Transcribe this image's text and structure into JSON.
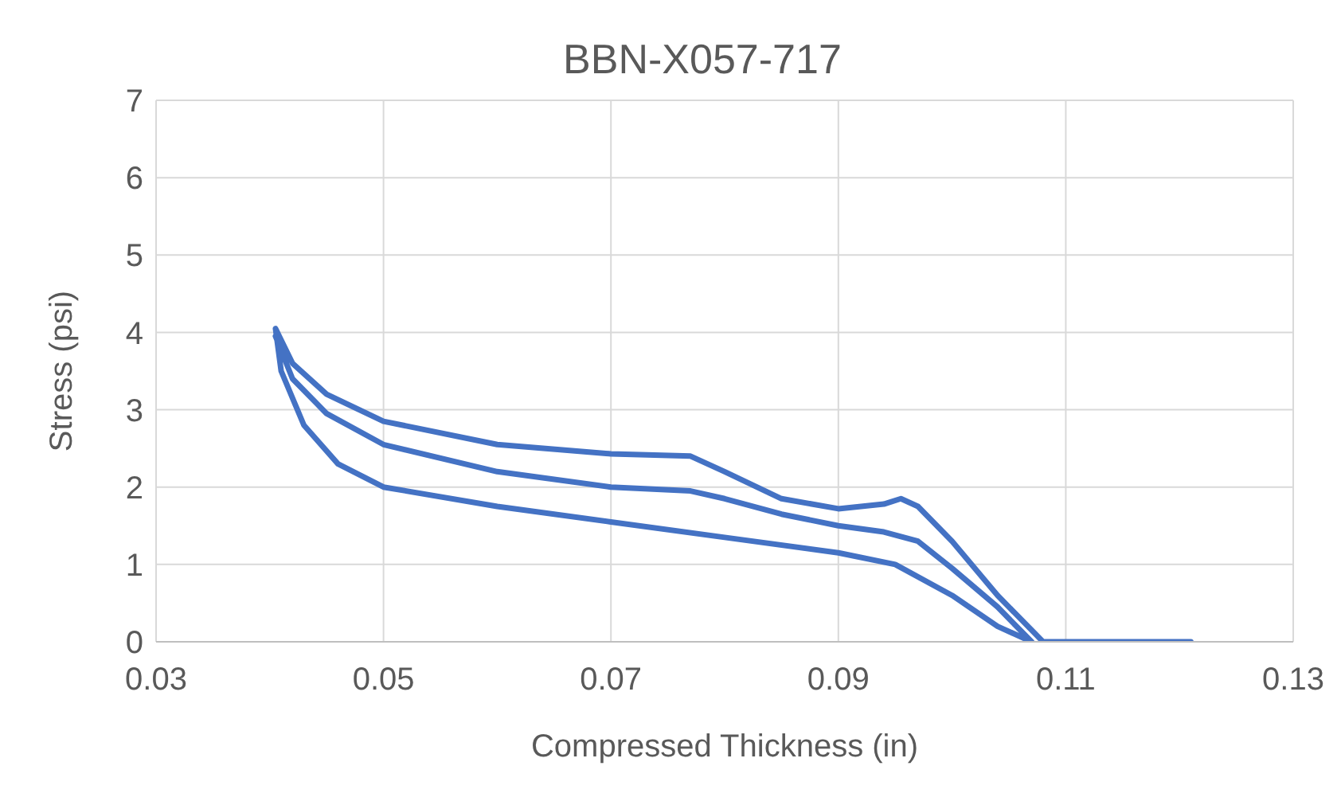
{
  "chart_data": {
    "type": "line",
    "title": "BBN-X057-717",
    "xlabel": "Compressed Thickness (in)",
    "ylabel": "Stress (psi)",
    "xlim": [
      0.03,
      0.13
    ],
    "xticks": [
      {
        "value": 0.03,
        "label": "0.03"
      },
      {
        "value": 0.05,
        "label": "0.05"
      },
      {
        "value": 0.07,
        "label": "0.07"
      },
      {
        "value": 0.09,
        "label": "0.09"
      },
      {
        "value": 0.11,
        "label": "0.11"
      },
      {
        "value": 0.13,
        "label": "0.13"
      }
    ],
    "ylim": [
      0,
      7
    ],
    "yticks": [
      0,
      1,
      2,
      3,
      4,
      5,
      6,
      7
    ],
    "grid": true,
    "marker": "none",
    "line_style": "solid",
    "series": [
      {
        "color": "#4472c4",
        "x": [
          0.121,
          0.108,
          0.104,
          0.1,
          0.097,
          0.0955,
          0.094,
          0.09,
          0.085,
          0.08,
          0.077,
          0.07,
          0.06,
          0.05,
          0.045,
          0.042,
          0.0405,
          0.041,
          0.043,
          0.046,
          0.05,
          0.06,
          0.07,
          0.08,
          0.09,
          0.095,
          0.1,
          0.104,
          0.107,
          0.104,
          0.1,
          0.097,
          0.094,
          0.09,
          0.085,
          0.08,
          0.077,
          0.07,
          0.06,
          0.05,
          0.045,
          0.042,
          0.0405
        ],
        "values": [
          0,
          0,
          0.6,
          1.3,
          1.75,
          1.85,
          1.78,
          1.72,
          1.85,
          2.2,
          2.4,
          2.43,
          2.55,
          2.85,
          3.2,
          3.6,
          4.05,
          3.5,
          2.8,
          2.3,
          2.0,
          1.75,
          1.55,
          1.35,
          1.15,
          1.0,
          0.6,
          0.2,
          0,
          0.45,
          0.95,
          1.3,
          1.42,
          1.5,
          1.65,
          1.85,
          1.95,
          2.0,
          2.2,
          2.55,
          2.95,
          3.4,
          3.95
        ]
      }
    ]
  }
}
